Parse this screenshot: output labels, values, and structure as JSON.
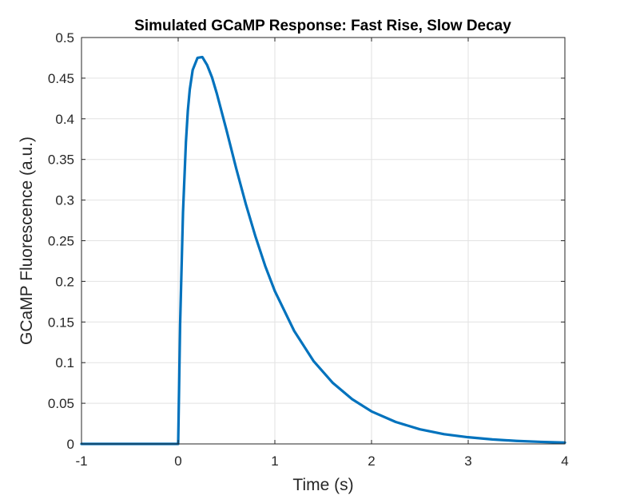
{
  "chart_data": {
    "type": "line",
    "title": "Simulated GCaMP Response: Fast Rise, Slow Decay",
    "xlabel": "Time (s)",
    "ylabel": "GCaMP Fluorescence (a.u.)",
    "xlim": [
      -1,
      4
    ],
    "ylim": [
      0,
      0.5
    ],
    "xticks": [
      -1,
      0,
      1,
      2,
      3,
      4
    ],
    "xtick_labels": [
      "-1",
      "0",
      "1",
      "2",
      "3",
      "4"
    ],
    "yticks": [
      0,
      0.05,
      0.1,
      0.15,
      0.2,
      0.25,
      0.3,
      0.35,
      0.4,
      0.45,
      0.5
    ],
    "ytick_labels": [
      "0",
      "0.05",
      "0.1",
      "0.15",
      "0.2",
      "0.25",
      "0.3",
      "0.35",
      "0.4",
      "0.45",
      "0.5"
    ],
    "grid": true,
    "series": [
      {
        "color": "#0072BD",
        "x": [
          -1,
          -0.5,
          0,
          0.02,
          0.05,
          0.08,
          0.1,
          0.12,
          0.15,
          0.2,
          0.25,
          0.3,
          0.35,
          0.4,
          0.5,
          0.6,
          0.7,
          0.8,
          0.9,
          1.0,
          1.2,
          1.4,
          1.6,
          1.8,
          2.0,
          2.25,
          2.5,
          2.75,
          3.0,
          3.25,
          3.5,
          3.75,
          4.0
        ],
        "y": [
          0,
          0,
          0,
          0.147,
          0.285,
          0.371,
          0.41,
          0.436,
          0.46,
          0.475,
          0.476,
          0.466,
          0.451,
          0.431,
          0.386,
          0.339,
          0.295,
          0.255,
          0.219,
          0.188,
          0.139,
          0.102,
          0.075,
          0.055,
          0.04,
          0.027,
          0.018,
          0.012,
          0.0082,
          0.0055,
          0.0037,
          0.0025,
          0.0016
        ]
      }
    ]
  }
}
